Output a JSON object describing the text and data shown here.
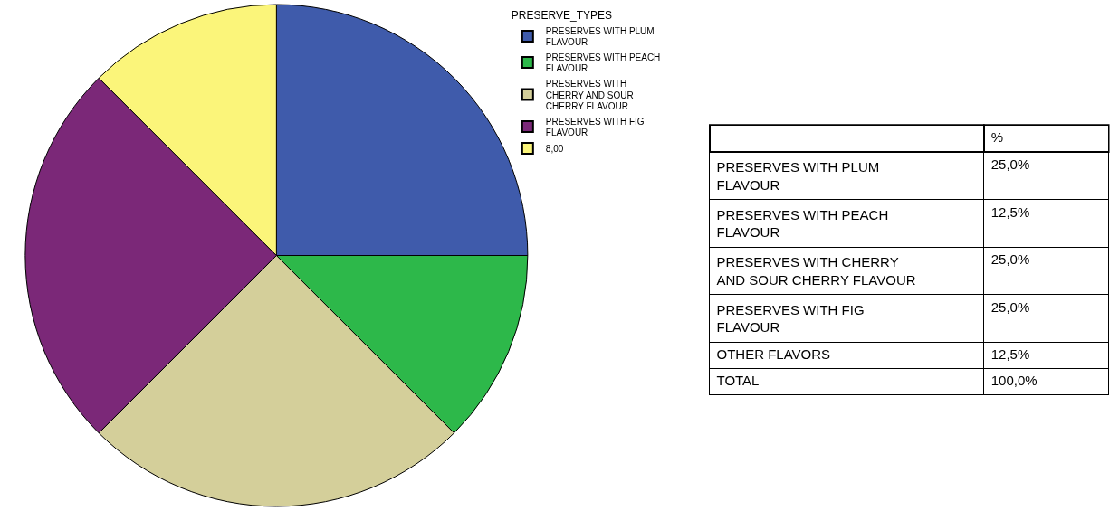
{
  "chart_data": {
    "type": "pie",
    "legend_title": "PRESERVE_TYPES",
    "categories": [
      "PRESERVES WITH PLUM FLAVOUR",
      "PRESERVES WITH PEACH FLAVOUR",
      "PRESERVES WITH CHERRY AND SOUR CHERRY FLAVOUR",
      "PRESERVES WITH FIG FLAVOUR",
      "8,00"
    ],
    "values": [
      25.0,
      12.5,
      25.0,
      25.0,
      12.5
    ],
    "colors": [
      "#3f5bab",
      "#2db84a",
      "#d4cf9a",
      "#7b2878",
      "#fbf57a"
    ],
    "annotations": [
      "%",
      "PRESERVES WITH PLUM FLAVOUR",
      "25,0%",
      "PRESERVES WITH PEACH FLAVOUR",
      "12,5%",
      "PRESERVES WITH CHERRY AND SOUR CHERRY FLAVOUR",
      "25,0%",
      "PRESERVES WITH FIG FLAVOUR",
      "25,0%",
      "OTHER FLAVORS",
      "12,5%",
      "TOTAL",
      "100,0%"
    ],
    "legend": "top right"
  }
}
